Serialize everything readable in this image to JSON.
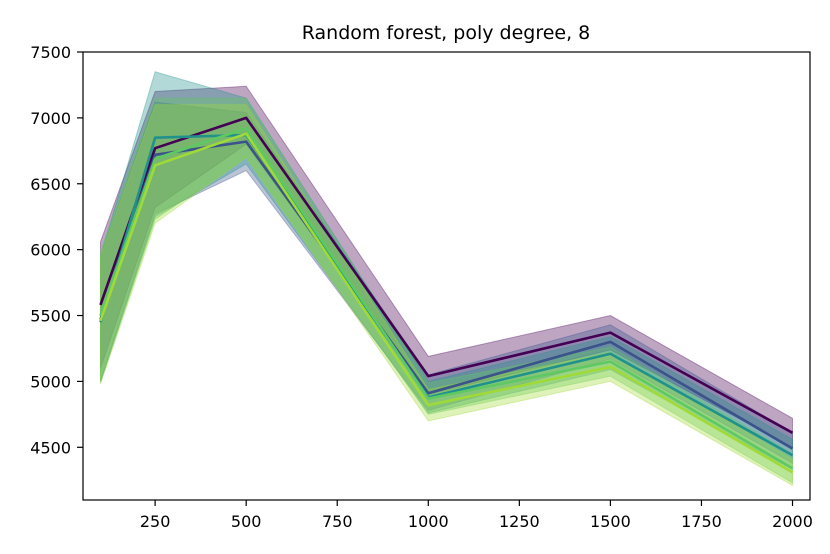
{
  "chart_data": {
    "type": "line",
    "title": "Random forest, poly degree, 8",
    "xlabel": "",
    "ylabel": "",
    "x": [
      100,
      250,
      500,
      1000,
      1500,
      2000
    ],
    "xlim": [
      52,
      2048
    ],
    "ylim": [
      4100,
      7500
    ],
    "xticks": [
      250,
      500,
      750,
      1000,
      1250,
      1500,
      1750,
      2000
    ],
    "yticks": [
      4500,
      5000,
      5500,
      6000,
      6500,
      7000,
      7500
    ],
    "grid": false,
    "legend": "none",
    "series": [
      {
        "color": "#440154",
        "mean": [
          5580,
          6770,
          7000,
          5040,
          5370,
          4610
        ],
        "lower": [
          5100,
          6320,
          6800,
          4900,
          5240,
          4500
        ],
        "upper": [
          6060,
          7200,
          7240,
          5190,
          5500,
          4720
        ]
      },
      {
        "color": "#3b528b",
        "mean": [
          5470,
          6720,
          6820,
          4910,
          5300,
          4490
        ],
        "lower": [
          5000,
          6270,
          6600,
          4780,
          5170,
          4380
        ],
        "upper": [
          5950,
          7120,
          7040,
          5050,
          5430,
          4610
        ]
      },
      {
        "color": "#21918c",
        "mean": [
          5450,
          6850,
          6870,
          4880,
          5210,
          4440
        ],
        "lower": [
          4990,
          6250,
          6650,
          4760,
          5090,
          4330
        ],
        "upper": [
          5950,
          7350,
          7150,
          5000,
          5340,
          4560
        ]
      },
      {
        "color": "#5ec962",
        "mean": [
          5500,
          6690,
          6920,
          4870,
          5150,
          4340
        ],
        "lower": [
          5000,
          6230,
          6700,
          4750,
          5040,
          4230
        ],
        "upper": [
          5990,
          7150,
          7150,
          4990,
          5260,
          4450
        ]
      },
      {
        "color": "#a0da39",
        "mean": [
          5460,
          6640,
          6880,
          4820,
          5110,
          4310
        ],
        "lower": [
          4980,
          6200,
          6700,
          4700,
          5000,
          4210
        ],
        "upper": [
          5950,
          7100,
          7100,
          4940,
          5220,
          4410
        ]
      }
    ]
  }
}
